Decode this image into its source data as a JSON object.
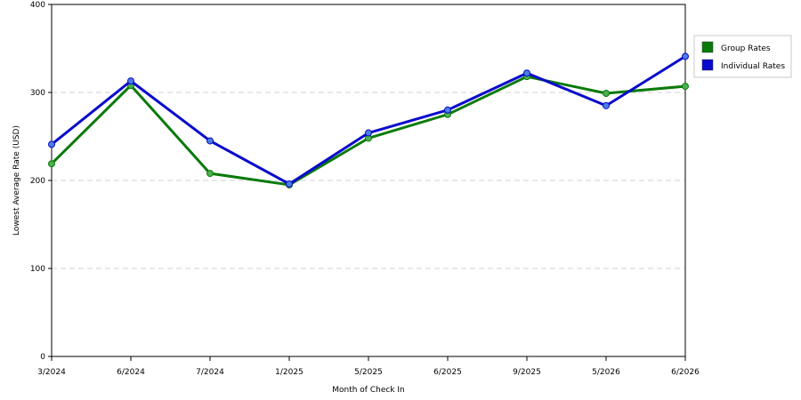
{
  "chart_data": {
    "type": "line",
    "title": "",
    "xlabel": "Month of Check In",
    "ylabel": "Lowest Average Rate (USD)",
    "categories": [
      "3/2024",
      "6/2024",
      "7/2024",
      "1/2025",
      "5/2025",
      "6/2025",
      "9/2025",
      "5/2026",
      "6/2026"
    ],
    "ylim": [
      0,
      400
    ],
    "yticks": [
      "0",
      "100",
      "200",
      "300",
      "400"
    ],
    "grid": "horizontal dashed",
    "legend_position": "right",
    "series": [
      {
        "name": "Group Rates",
        "color": "#0a7a0a",
        "values": [
          219,
          308,
          208,
          195,
          248,
          275,
          318,
          299,
          307
        ]
      },
      {
        "name": "Individual Rates",
        "color": "#0a0acc",
        "values": [
          241,
          313,
          245,
          196,
          254,
          280,
          322,
          285,
          341
        ]
      }
    ]
  }
}
